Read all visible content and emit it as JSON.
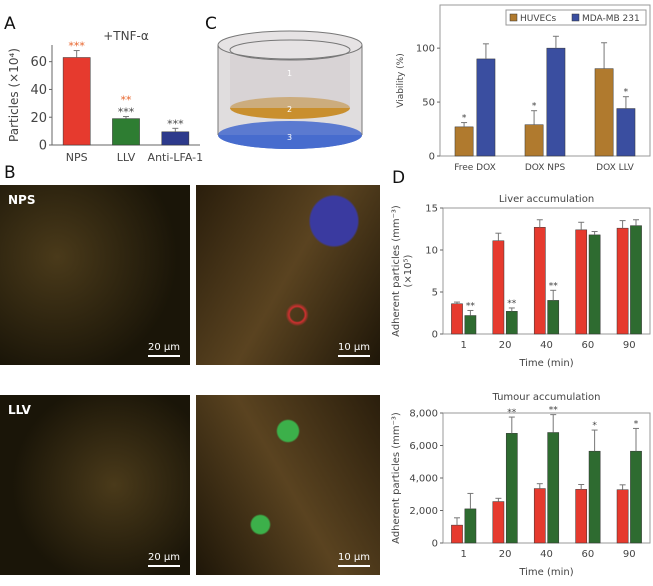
{
  "panels": {
    "a": "A",
    "b": "B",
    "c": "C",
    "d": "D"
  },
  "diagram_c": {
    "layers": [
      "1",
      "2",
      "3"
    ]
  },
  "microscopy": [
    {
      "label": "NPS",
      "scale_left": "20 µm",
      "scale_right": "10 µm"
    },
    {
      "label": "LLV",
      "scale_left": "20 µm",
      "scale_right": "10 µm"
    }
  ],
  "chart_data": [
    {
      "id": "A",
      "type": "bar",
      "title": "+TNF-α",
      "ylabel": "Particles (×10⁴)",
      "ylim": [
        0,
        72
      ],
      "yticks": [
        0,
        20,
        40,
        60
      ],
      "categories": [
        "NPS",
        "LLV",
        "Anti-LFA-1"
      ],
      "values": [
        63,
        19,
        9.5
      ],
      "errors": [
        5,
        1.5,
        2.5
      ],
      "colors": [
        "#e63a2e",
        "#2e7d32",
        "#2d3a8c"
      ],
      "annotations": [
        [
          "***"
        ],
        [
          "**",
          "***"
        ],
        [
          "***"
        ]
      ],
      "annotation_colors": [
        [
          "#e8632a"
        ],
        [
          "#e8632a",
          "#444444"
        ],
        [
          "#444444"
        ]
      ]
    },
    {
      "id": "C",
      "type": "bar",
      "ylabel": "Viability (%)",
      "ylim": [
        0,
        140
      ],
      "yticks": [
        0,
        50,
        100
      ],
      "categories": [
        "Free DOX",
        "DOX NPS",
        "DOX LLV"
      ],
      "legend": "top-right",
      "series": [
        {
          "name": "HUVECs",
          "color": "#b07a2e",
          "values": [
            27,
            29,
            81
          ],
          "errors": [
            4,
            13,
            24
          ],
          "stars": [
            "*",
            "*",
            ""
          ]
        },
        {
          "name": "MDA-MB 231",
          "color": "#3a4ea0",
          "values": [
            90,
            100,
            44
          ],
          "errors": [
            14,
            11,
            11
          ],
          "stars": [
            "",
            "",
            "*"
          ]
        }
      ]
    },
    {
      "id": "D1",
      "type": "bar",
      "title": "Liver accumulation",
      "xlabel": "Time (min)",
      "ylabel": "Adherent particles (mm⁻³)",
      "ylabel2": "(×10⁵)",
      "ylim": [
        0,
        15
      ],
      "yticks": [
        0,
        5,
        10,
        15
      ],
      "ytick_labels": [
        "0",
        "5",
        "10",
        "15"
      ],
      "categories": [
        "1",
        "20",
        "40",
        "60",
        "90"
      ],
      "series": [
        {
          "color": "#e63a2e",
          "values": [
            3.6,
            11.1,
            12.7,
            12.4,
            12.6
          ],
          "errors": [
            0.2,
            0.9,
            0.9,
            0.9,
            0.9
          ],
          "stars": [
            "",
            "",
            "",
            "",
            ""
          ]
        },
        {
          "color": "#2e6b30",
          "values": [
            2.2,
            2.7,
            4.0,
            11.8,
            12.9
          ],
          "errors": [
            0.6,
            0.4,
            1.2,
            0.4,
            0.7
          ],
          "stars": [
            "**",
            "**",
            "**",
            "",
            ""
          ]
        }
      ]
    },
    {
      "id": "D2",
      "type": "bar",
      "title": "Tumour accumulation",
      "xlabel": "Time (min)",
      "ylabel": "Adherent particles (mm⁻³)",
      "ylim": [
        0,
        8000
      ],
      "yticks": [
        0,
        2000,
        4000,
        6000,
        8000
      ],
      "ytick_labels": [
        "0",
        "2,000",
        "4,000",
        "6,000",
        "8,000"
      ],
      "categories": [
        "1",
        "20",
        "40",
        "60",
        "90"
      ],
      "series": [
        {
          "color": "#e63a2e",
          "values": [
            1100,
            2550,
            3350,
            3300,
            3280
          ],
          "errors": [
            450,
            200,
            300,
            300,
            300
          ],
          "stars": [
            "",
            "",
            "",
            "",
            ""
          ]
        },
        {
          "color": "#2e6b30",
          "values": [
            2100,
            6750,
            6800,
            5650,
            5650
          ],
          "errors": [
            950,
            1000,
            1100,
            1300,
            1400
          ],
          "stars": [
            "",
            "**",
            "**",
            "*",
            "*"
          ]
        }
      ]
    }
  ]
}
